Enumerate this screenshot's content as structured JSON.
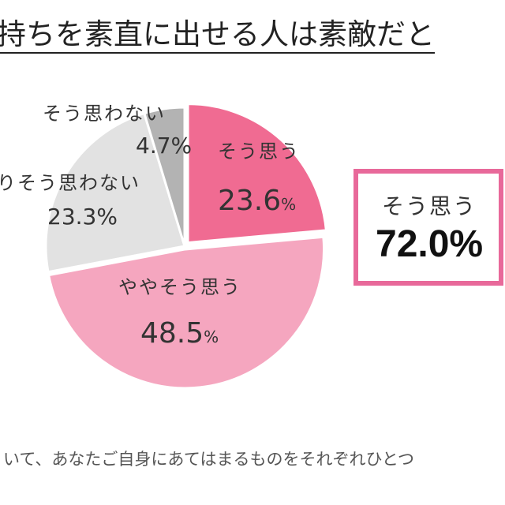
{
  "chart_data": {
    "type": "pie",
    "title": "持ちを素直に出せる人は素敵だと",
    "footnote": "いて、あなたご自身にあてはまるものをそれぞれひとつ",
    "slices": [
      {
        "label": "そう思う",
        "value": 23.6,
        "display": "23.6",
        "color": "#f06b92"
      },
      {
        "label": "ややそう思う",
        "value": 48.5,
        "display": "48.5",
        "color": "#f5a6bf"
      },
      {
        "label": "りそう思わない",
        "value": 23.3,
        "display": "23.3%",
        "color": "#e2e2e2"
      },
      {
        "label": "そう思わない",
        "value": 4.7,
        "display": "4.7%",
        "color": "#b3b3b3"
      }
    ],
    "percent_sign": "%",
    "summary": {
      "label": "そう思う",
      "value": "72.0%",
      "border_color": "#e8699a"
    }
  }
}
